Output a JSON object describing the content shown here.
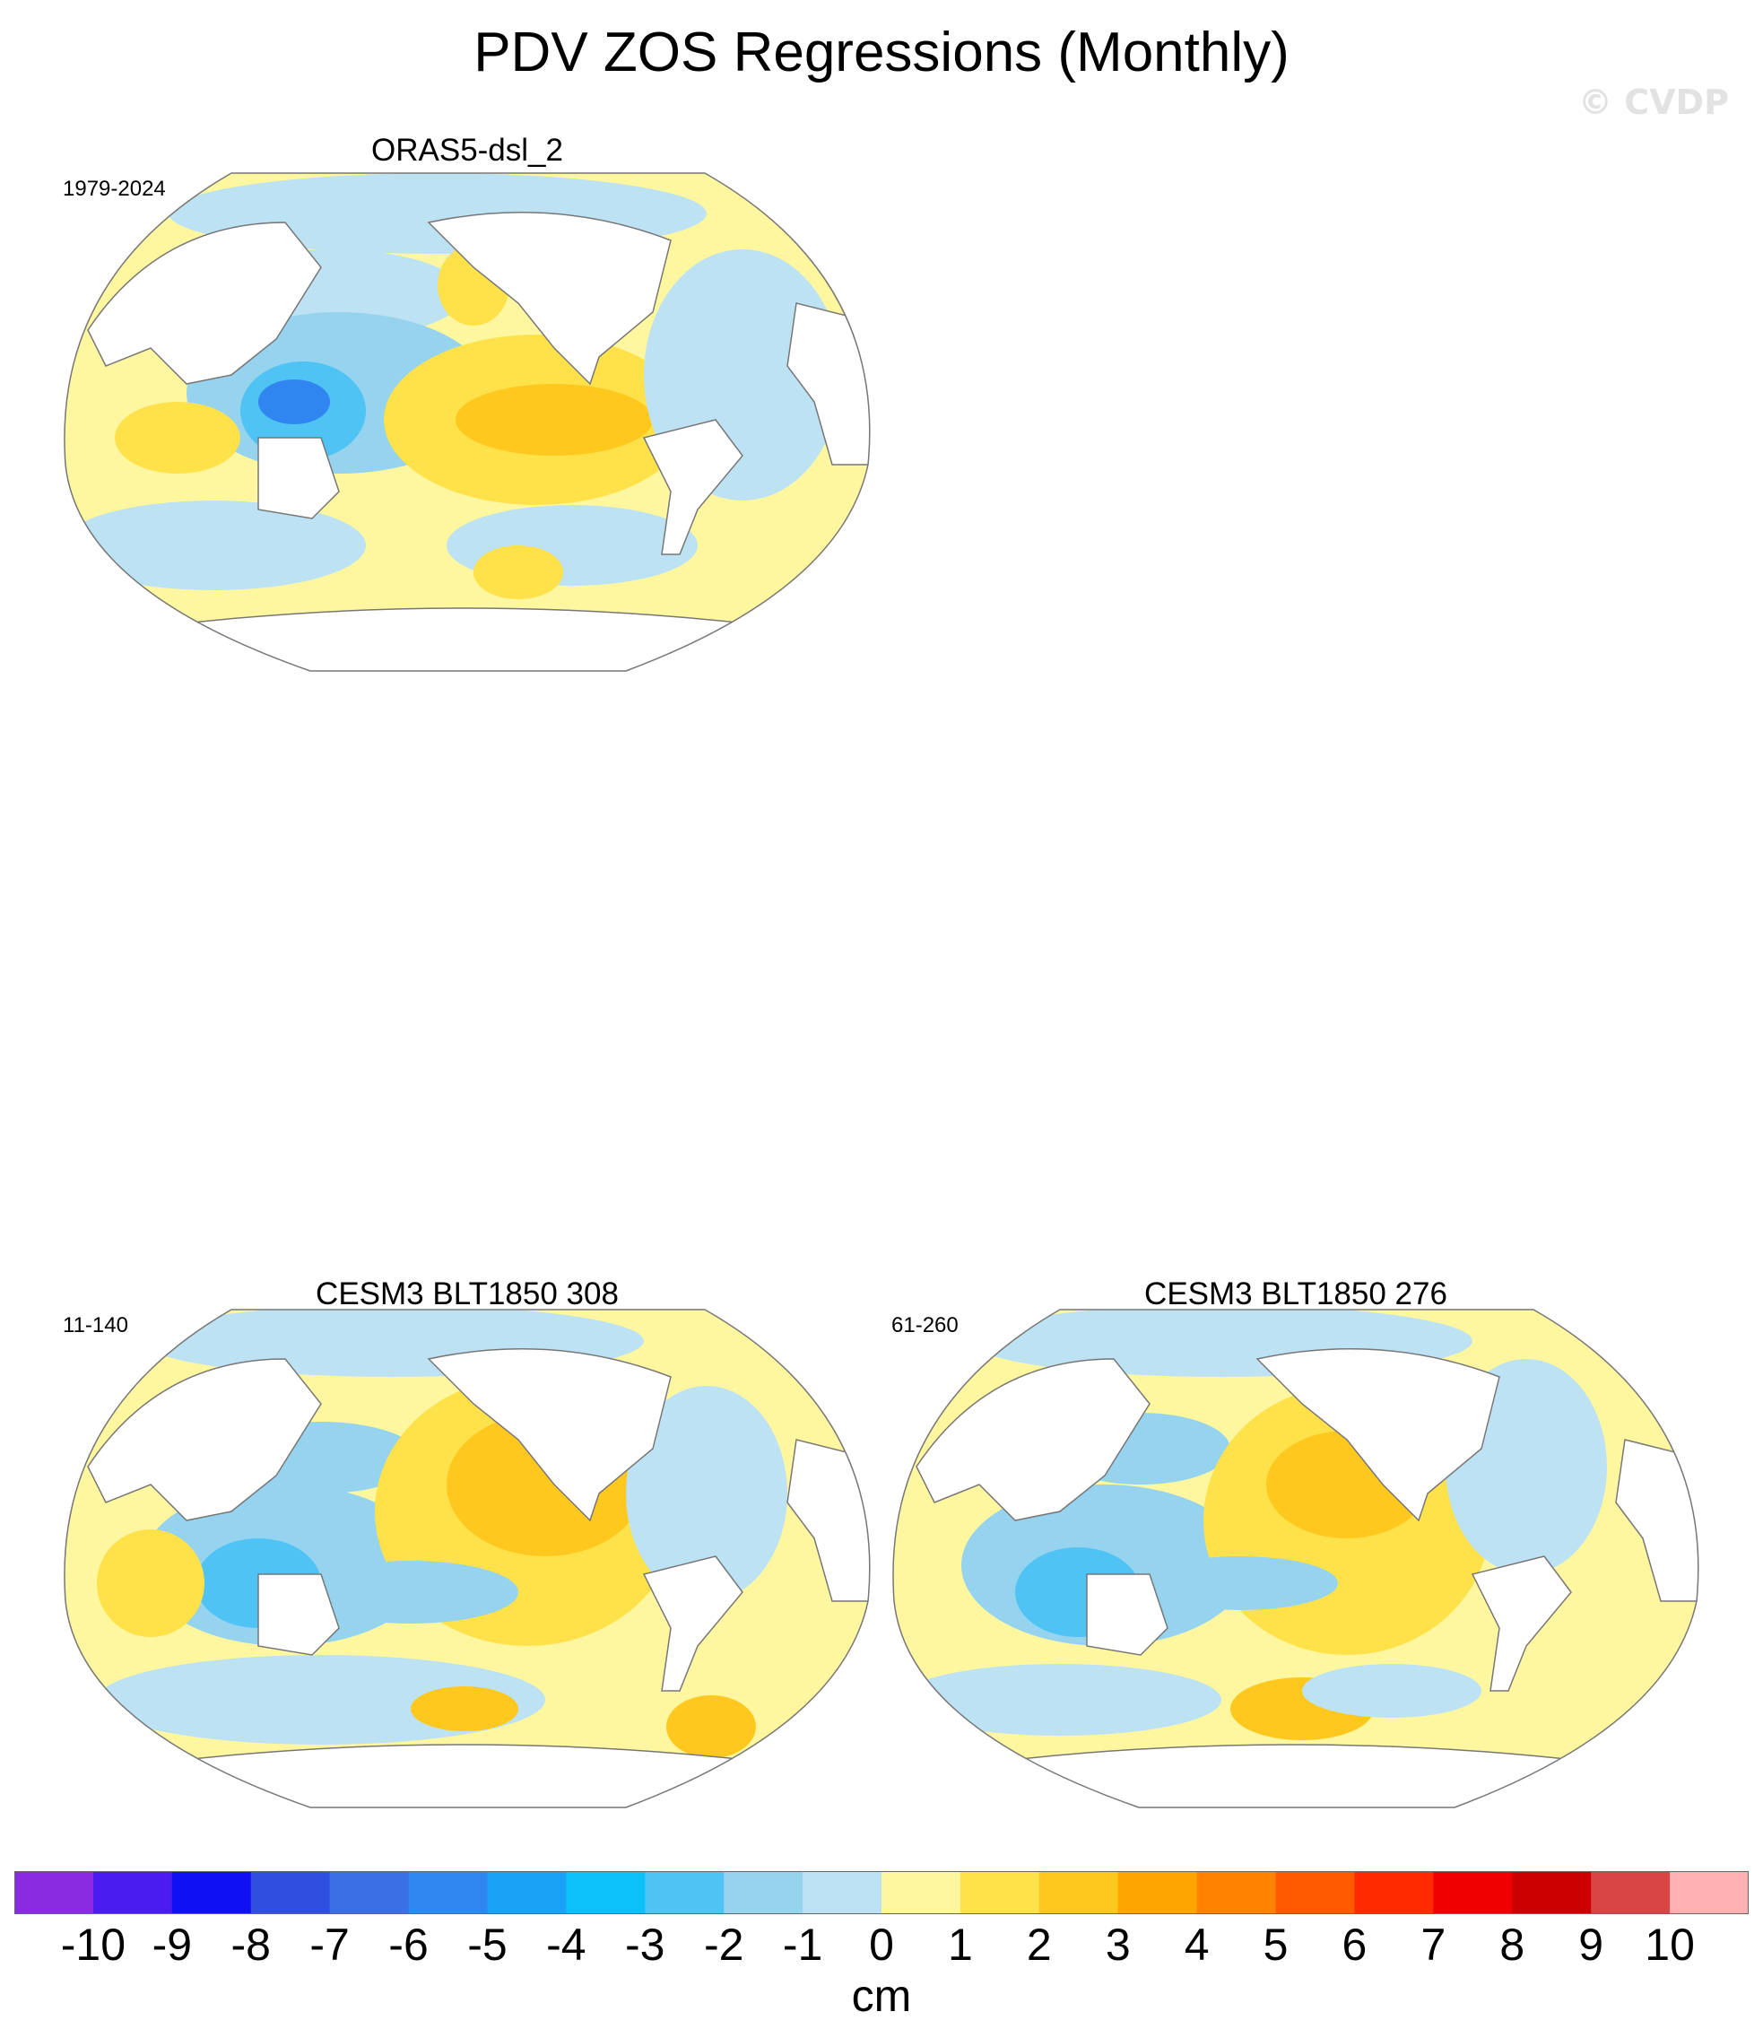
{
  "figure": {
    "title": "PDV ZOS Regressions (Monthly)",
    "credit": "© CVDP"
  },
  "panels": [
    {
      "title": "ORAS5-dsl_2",
      "period": "1979-2024"
    },
    {
      "title": "CESM3 BLT1850 308",
      "period": "11-140"
    },
    {
      "title": "CESM3 BLT1850 276",
      "period": "61-260"
    }
  ],
  "colorbar": {
    "units": "cm",
    "tick_labels": [
      "-10",
      "-9",
      "-8",
      "-7",
      "-6",
      "-5",
      "-4",
      "-3",
      "-2",
      "-1",
      "0",
      "1",
      "2",
      "3",
      "4",
      "5",
      "6",
      "7",
      "8",
      "9",
      "10"
    ],
    "colors": [
      "#8a2be2",
      "#4b1cf0",
      "#1010f5",
      "#2e4fe0",
      "#3a6fe6",
      "#2f86f0",
      "#1aa2f7",
      "#0cc0f9",
      "#4ec3f4",
      "#96d3ee",
      "#bde2f3",
      "#fff7a0",
      "#ffe14a",
      "#ffc81f",
      "#ffa500",
      "#ff8200",
      "#ff5a00",
      "#ff2a00",
      "#f00000",
      "#cc0000",
      "#d94545",
      "#ffb0b0"
    ]
  }
}
